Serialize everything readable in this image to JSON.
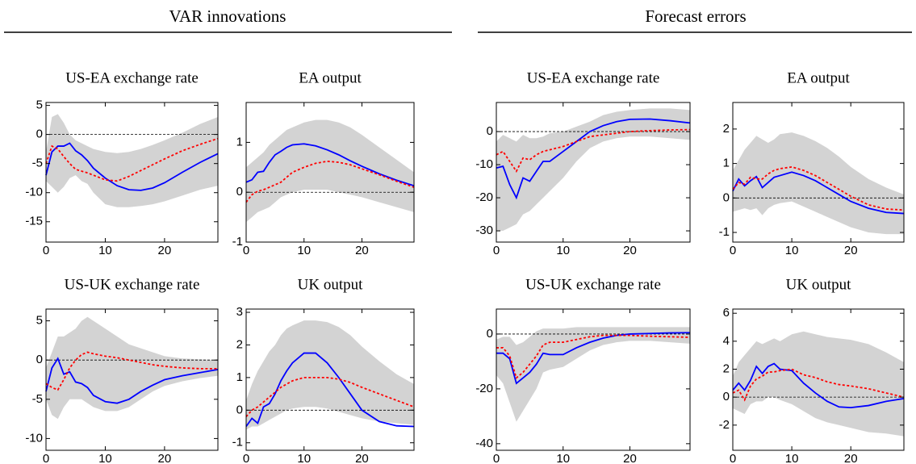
{
  "headers": [
    {
      "title": "VAR innovations"
    },
    {
      "title": "Forecast errors"
    }
  ],
  "chart_data": [
    {
      "type": "line",
      "title": "US-EA exchange rate",
      "x": [
        0,
        1,
        2,
        3,
        4,
        5,
        6,
        7,
        8,
        10,
        12,
        14,
        16,
        18,
        20,
        23,
        26,
        29
      ],
      "xlim": [
        0,
        29
      ],
      "xticks": [
        0,
        10,
        20
      ],
      "ylim": [
        -18.5,
        5.5
      ],
      "yticks": [
        -15,
        -10,
        -5,
        0,
        5
      ],
      "hline": 0,
      "band": {
        "color": "#d3d3d3",
        "lower": [
          -8,
          -9,
          -10,
          -9,
          -7.5,
          -7,
          -8,
          -8.5,
          -10,
          -12,
          -12.5,
          -12.5,
          -12.3,
          -12,
          -11.5,
          -10.5,
          -9.5,
          -8.8
        ],
        "upper": [
          -3,
          3,
          3.5,
          2,
          0,
          -1,
          -1.5,
          -2,
          -2.5,
          -3,
          -3.2,
          -3,
          -2.5,
          -1.8,
          -1,
          0.3,
          1.8,
          3
        ]
      },
      "series": [
        {
          "color": "#0000ff",
          "dash": "solid",
          "values": [
            -7,
            -3,
            -2,
            -2,
            -1.5,
            -2.8,
            -3.5,
            -4.5,
            -5.8,
            -7.5,
            -8.8,
            -9.5,
            -9.6,
            -9.2,
            -8.3,
            -6.5,
            -4.8,
            -3.3
          ]
        },
        {
          "color": "#ff0000",
          "dash": "dotted",
          "values": [
            -5,
            -2,
            -2.5,
            -3.8,
            -5,
            -6,
            -6.3,
            -6.6,
            -7,
            -7.8,
            -8,
            -7.2,
            -6.2,
            -5.2,
            -4.2,
            -2.8,
            -1.7,
            -0.7
          ]
        }
      ]
    },
    {
      "type": "line",
      "title": "EA output",
      "x": [
        0,
        1,
        2,
        3,
        4,
        5,
        6,
        7,
        8,
        10,
        12,
        14,
        16,
        18,
        20,
        23,
        26,
        29
      ],
      "xlim": [
        0,
        29
      ],
      "xticks": [
        0,
        10,
        20
      ],
      "ylim": [
        -1,
        1.8
      ],
      "yticks": [
        -1,
        0,
        1
      ],
      "hline": 0,
      "band": {
        "color": "#d3d3d3",
        "lower": [
          -0.6,
          -0.5,
          -0.4,
          -0.35,
          -0.3,
          -0.2,
          -0.1,
          -0.05,
          0,
          0.05,
          0.05,
          0.05,
          0,
          -0.05,
          -0.1,
          -0.2,
          -0.3,
          -0.4
        ],
        "upper": [
          0.5,
          0.6,
          0.7,
          0.8,
          0.95,
          1.05,
          1.15,
          1.25,
          1.3,
          1.4,
          1.45,
          1.45,
          1.4,
          1.3,
          1.15,
          0.9,
          0.65,
          0.4
        ]
      },
      "series": [
        {
          "color": "#0000ff",
          "dash": "solid",
          "values": [
            0.2,
            0.25,
            0.4,
            0.42,
            0.6,
            0.75,
            0.82,
            0.9,
            0.95,
            0.97,
            0.93,
            0.85,
            0.75,
            0.63,
            0.52,
            0.37,
            0.24,
            0.13
          ]
        },
        {
          "color": "#ff0000",
          "dash": "dotted",
          "values": [
            -0.2,
            -0.05,
            0.02,
            0.05,
            0.1,
            0.15,
            0.2,
            0.3,
            0.4,
            0.5,
            0.58,
            0.62,
            0.6,
            0.55,
            0.47,
            0.35,
            0.22,
            0.1
          ]
        }
      ]
    },
    {
      "type": "line",
      "title": "US-EA exchange rate",
      "x": [
        0,
        1,
        2,
        3,
        4,
        5,
        6,
        7,
        8,
        10,
        12,
        14,
        16,
        18,
        20,
        23,
        26,
        29
      ],
      "xlim": [
        0,
        29
      ],
      "xticks": [
        0,
        10,
        20
      ],
      "ylim": [
        -33.4,
        8.8
      ],
      "yticks": [
        -30,
        -20,
        -10,
        0
      ],
      "hline": 0,
      "band": {
        "color": "#d3d3d3",
        "lower": [
          -30,
          -30,
          -29,
          -28,
          -25,
          -24,
          -22,
          -20,
          -18,
          -14,
          -9,
          -5,
          -3,
          -2,
          -1.5,
          -1.5,
          -2,
          -2.5
        ],
        "upper": [
          -3,
          -1,
          -2,
          -3,
          -1,
          -2,
          -2,
          -1.5,
          -0.5,
          0,
          1.5,
          3,
          5,
          6,
          6.5,
          7,
          7,
          6.5
        ]
      },
      "series": [
        {
          "color": "#0000ff",
          "dash": "solid",
          "values": [
            -11,
            -10.5,
            -16,
            -20,
            -14,
            -15,
            -12,
            -9,
            -9,
            -6,
            -3,
            0,
            1.8,
            3,
            3.7,
            3.8,
            3.3,
            2.6
          ]
        },
        {
          "color": "#ff0000",
          "dash": "dotted",
          "values": [
            -7,
            -6,
            -9,
            -12,
            -8,
            -8.5,
            -7,
            -6,
            -5.5,
            -4.5,
            -3,
            -1.5,
            -1,
            -0.5,
            0,
            0.3,
            0.5,
            0.6
          ]
        }
      ]
    },
    {
      "type": "line",
      "title": "EA output",
      "x": [
        0,
        1,
        2,
        3,
        4,
        5,
        6,
        7,
        8,
        10,
        12,
        14,
        16,
        18,
        20,
        23,
        26,
        29
      ],
      "xlim": [
        0,
        29
      ],
      "xticks": [
        0,
        10,
        20
      ],
      "ylim": [
        -1.28,
        2.77
      ],
      "yticks": [
        -1,
        0,
        1,
        2
      ],
      "hline": 0,
      "band": {
        "color": "#d3d3d3",
        "lower": [
          -0.4,
          -0.35,
          -0.3,
          -0.35,
          -0.3,
          -0.5,
          -0.3,
          -0.2,
          -0.15,
          -0.1,
          -0.25,
          -0.4,
          -0.55,
          -0.7,
          -0.85,
          -1,
          -1.05,
          -1.05
        ],
        "upper": [
          0.8,
          1.1,
          1.4,
          1.6,
          1.8,
          1.7,
          1.6,
          1.7,
          1.85,
          1.9,
          1.8,
          1.65,
          1.45,
          1.2,
          0.9,
          0.55,
          0.3,
          0.1
        ]
      },
      "series": [
        {
          "color": "#0000ff",
          "dash": "solid",
          "values": [
            0.2,
            0.55,
            0.35,
            0.5,
            0.62,
            0.3,
            0.45,
            0.6,
            0.65,
            0.75,
            0.65,
            0.5,
            0.3,
            0.1,
            -0.1,
            -0.3,
            -0.42,
            -0.45
          ]
        },
        {
          "color": "#ff0000",
          "dash": "dotted",
          "values": [
            0.25,
            0.45,
            0.4,
            0.6,
            0.55,
            0.55,
            0.7,
            0.8,
            0.85,
            0.9,
            0.8,
            0.65,
            0.45,
            0.25,
            0.05,
            -0.2,
            -0.32,
            -0.35
          ]
        }
      ]
    },
    {
      "type": "line",
      "title": "US-UK exchange rate",
      "x": [
        0,
        1,
        2,
        3,
        4,
        5,
        6,
        7,
        8,
        10,
        12,
        14,
        16,
        18,
        20,
        23,
        26,
        29
      ],
      "xlim": [
        0,
        29
      ],
      "xticks": [
        0,
        10,
        20
      ],
      "ylim": [
        -11.5,
        6.5
      ],
      "yticks": [
        -10,
        -5,
        0,
        5
      ],
      "hline": 0,
      "band": {
        "color": "#d3d3d3",
        "lower": [
          -5,
          -7,
          -7.5,
          -6,
          -5,
          -5,
          -5,
          -5.5,
          -6,
          -6.5,
          -6.5,
          -6,
          -5,
          -4,
          -3.3,
          -2.7,
          -2.3,
          -2
        ],
        "upper": [
          -1,
          1,
          3,
          3,
          3.5,
          4,
          5,
          5.5,
          5,
          4,
          3,
          2,
          1.5,
          1,
          0.5,
          0.2,
          0.1,
          0
        ]
      },
      "series": [
        {
          "color": "#0000ff",
          "dash": "solid",
          "values": [
            -4,
            -1,
            0.2,
            -1.8,
            -1.5,
            -2.8,
            -3,
            -3.5,
            -4.5,
            -5.3,
            -5.5,
            -5,
            -4,
            -3.2,
            -2.5,
            -2,
            -1.6,
            -1.2
          ]
        },
        {
          "color": "#ff0000",
          "dash": "dotted",
          "values": [
            -3,
            -3.5,
            -3.8,
            -2.5,
            -1,
            0,
            0.7,
            1,
            0.8,
            0.5,
            0.3,
            0,
            -0.3,
            -0.6,
            -0.8,
            -1,
            -1.1,
            -1.1
          ]
        }
      ]
    },
    {
      "type": "line",
      "title": "UK output",
      "x": [
        0,
        1,
        2,
        3,
        4,
        5,
        6,
        7,
        8,
        10,
        12,
        14,
        16,
        18,
        20,
        23,
        26,
        29
      ],
      "xlim": [
        0,
        29
      ],
      "xticks": [
        0,
        10,
        20
      ],
      "ylim": [
        -1.23,
        3.1
      ],
      "yticks": [
        -1,
        0,
        1,
        2,
        3
      ],
      "hline": 0,
      "band": {
        "color": "#d3d3d3",
        "lower": [
          -0.6,
          -0.5,
          -0.5,
          -0.4,
          -0.3,
          -0.2,
          -0.1,
          0,
          0.05,
          0.1,
          0.1,
          0.05,
          -0.05,
          -0.15,
          -0.25,
          -0.35,
          -0.4,
          -0.45
        ],
        "upper": [
          0.3,
          0.8,
          1.2,
          1.5,
          1.8,
          2,
          2.3,
          2.5,
          2.6,
          2.75,
          2.75,
          2.7,
          2.55,
          2.3,
          1.95,
          1.5,
          1.1,
          0.8
        ]
      },
      "series": [
        {
          "color": "#0000ff",
          "dash": "solid",
          "values": [
            -0.5,
            -0.25,
            -0.4,
            0.1,
            0.2,
            0.5,
            0.9,
            1.2,
            1.45,
            1.75,
            1.75,
            1.45,
            1,
            0.5,
            0,
            -0.35,
            -0.48,
            -0.5
          ]
        },
        {
          "color": "#ff0000",
          "dash": "dotted",
          "values": [
            -0.2,
            0,
            0.1,
            0.25,
            0.4,
            0.55,
            0.7,
            0.8,
            0.9,
            1,
            1,
            1,
            0.95,
            0.85,
            0.7,
            0.5,
            0.3,
            0.1
          ]
        }
      ]
    },
    {
      "type": "line",
      "title": "US-UK exchange rate",
      "x": [
        0,
        1,
        2,
        3,
        4,
        5,
        6,
        7,
        8,
        10,
        12,
        14,
        16,
        18,
        20,
        23,
        26,
        29
      ],
      "xlim": [
        0,
        29
      ],
      "xticks": [
        0,
        10,
        20
      ],
      "ylim": [
        -42.4,
        9.1
      ],
      "yticks": [
        -40,
        -20,
        0
      ],
      "hline": 0,
      "band": {
        "color": "#d3d3d3",
        "lower": [
          -15,
          -18,
          -25,
          -32,
          -28,
          -24,
          -20,
          -14,
          -13,
          -12,
          -9,
          -6,
          -4,
          -3,
          -2.5,
          -2.5,
          -3,
          -3.5
        ],
        "upper": [
          -2,
          -1,
          -1,
          -4,
          -3,
          -1,
          1,
          2,
          2,
          2,
          2.5,
          2.5,
          2.5,
          2.5,
          2.5,
          2.5,
          2.5,
          2.5
        ]
      },
      "series": [
        {
          "color": "#0000ff",
          "dash": "solid",
          "values": [
            -7,
            -7,
            -9,
            -18,
            -16,
            -14,
            -11,
            -7,
            -7.5,
            -7.5,
            -5,
            -3,
            -1.5,
            -0.5,
            0,
            0.2,
            0.4,
            0.5
          ]
        },
        {
          "color": "#ff0000",
          "dash": "dotted",
          "values": [
            -5,
            -5,
            -8,
            -16,
            -14,
            -11,
            -8,
            -4,
            -3,
            -3,
            -2,
            -1,
            -0.5,
            -0.5,
            -0.5,
            -0.8,
            -1,
            -1.2
          ]
        }
      ]
    },
    {
      "type": "line",
      "title": "UK output",
      "x": [
        0,
        1,
        2,
        3,
        4,
        5,
        6,
        7,
        8,
        10,
        12,
        14,
        16,
        18,
        20,
        23,
        26,
        29
      ],
      "xlim": [
        0,
        29
      ],
      "xticks": [
        0,
        10,
        20
      ],
      "ylim": [
        -3.8,
        6.3
      ],
      "yticks": [
        -2,
        0,
        2,
        4,
        6
      ],
      "hline": 0,
      "band": {
        "color": "#d3d3d3",
        "lower": [
          -0.8,
          -1,
          -1.2,
          -0.5,
          -0.3,
          -0.3,
          0,
          0,
          -0.2,
          -0.5,
          -1,
          -1.5,
          -1.8,
          -2,
          -2.2,
          -2.5,
          -2.6,
          -2.8
        ],
        "upper": [
          1.5,
          2.5,
          3,
          3.5,
          4,
          3.8,
          4,
          4.2,
          4,
          4.5,
          4.7,
          4.5,
          4.3,
          4.2,
          4.1,
          3.8,
          3.2,
          2.5
        ]
      },
      "series": [
        {
          "color": "#0000ff",
          "dash": "solid",
          "values": [
            0.5,
            1,
            0.5,
            1.2,
            2.2,
            1.7,
            2.2,
            2.4,
            2,
            1.9,
            1,
            0.3,
            -0.3,
            -0.7,
            -0.75,
            -0.6,
            -0.3,
            -0.1
          ]
        },
        {
          "color": "#ff0000",
          "dash": "dotted",
          "values": [
            0.3,
            0.5,
            -0.2,
            0.8,
            1.3,
            1.5,
            1.8,
            1.8,
            1.9,
            2,
            1.6,
            1.4,
            1.1,
            0.9,
            0.8,
            0.6,
            0.3,
            0
          ]
        }
      ]
    }
  ]
}
